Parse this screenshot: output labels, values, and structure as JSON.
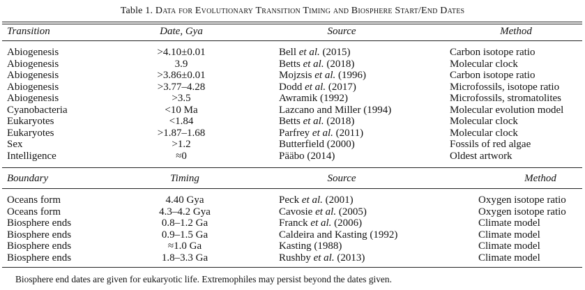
{
  "table": {
    "title_number": "Table 1.",
    "title_text": "Data for Evolutionary Transition Timing and Biosphere Start/End Dates",
    "transitions": {
      "headers": {
        "col1": "Transition",
        "col2": "Date, Gya",
        "col3": "Source",
        "col4": "Method"
      },
      "rows": [
        {
          "c1": "Abiogenesis",
          "c2": ">4.10±0.01",
          "c3a": "Bell",
          "c3b": "et al.",
          "c3c": "(2015)",
          "c4": "Carbon isotope ratio"
        },
        {
          "c1": "Abiogenesis",
          "c2": "3.9",
          "c3a": "Betts",
          "c3b": "et al.",
          "c3c": "(2018)",
          "c4": "Molecular clock"
        },
        {
          "c1": "Abiogenesis",
          "c2": ">3.86±0.01",
          "c3a": "Mojzsis",
          "c3b": "et al.",
          "c3c": "(1996)",
          "c4": "Carbon isotope ratio"
        },
        {
          "c1": "Abiogenesis",
          "c2": ">3.77–4.28",
          "c3a": "Dodd",
          "c3b": "et al.",
          "c3c": "(2017)",
          "c4": "Microfossils, isotope ratio"
        },
        {
          "c1": "Abiogenesis",
          "c2": ">3.5",
          "c3a": "Awramik (1992)",
          "c3b": "",
          "c3c": "",
          "c4": "Microfossils, stromatolites"
        },
        {
          "c1": "Cyanobacteria",
          "c2": "<10 Ma",
          "c3a": "Lazcano and Miller (1994)",
          "c3b": "",
          "c3c": "",
          "c4": "Molecular evolution model"
        },
        {
          "c1": "Eukaryotes",
          "c2": "<1.84",
          "c3a": "Betts",
          "c3b": "et al.",
          "c3c": "(2018)",
          "c4": "Molecular clock"
        },
        {
          "c1": "Eukaryotes",
          "c2": ">1.87–1.68",
          "c3a": "Parfrey",
          "c3b": "et al.",
          "c3c": "(2011)",
          "c4": "Molecular clock"
        },
        {
          "c1": "Sex",
          "c2": ">1.2",
          "c3a": "Butterfield (2000)",
          "c3b": "",
          "c3c": "",
          "c4": "Fossils of red algae"
        },
        {
          "c1": "Intelligence",
          "c2": "≈0",
          "c3a": "Pääbo (2014)",
          "c3b": "",
          "c3c": "",
          "c4": "Oldest artwork"
        }
      ]
    },
    "boundaries": {
      "headers": {
        "col1": "Boundary",
        "col2": "Timing",
        "col3": "Source",
        "col4": "Method"
      },
      "rows": [
        {
          "c1": "Oceans form",
          "c2": "4.40 Gya",
          "c3a": "Peck",
          "c3b": "et al.",
          "c3c": "(2001)",
          "c4": "Oxygen isotope ratio"
        },
        {
          "c1": "Oceans form",
          "c2": "4.3–4.2 Gya",
          "c3a": "Cavosie",
          "c3b": "et al.",
          "c3c": "(2005)",
          "c4": "Oxygen isotope ratio"
        },
        {
          "c1": "Biosphere ends",
          "c2": "0.8–1.2 Ga",
          "c3a": "Franck",
          "c3b": "et al.",
          "c3c": "(2006)",
          "c4": "Climate model"
        },
        {
          "c1": "Biosphere ends",
          "c2": "0.9–1.5 Ga",
          "c3a": "Caldeira and Kasting (1992)",
          "c3b": "",
          "c3c": "",
          "c4": "Climate model"
        },
        {
          "c1": "Biosphere ends",
          "c2": "≈1.0 Ga",
          "c3a": "Kasting (1988)",
          "c3b": "",
          "c3c": "",
          "c4": "Climate model"
        },
        {
          "c1": "Biosphere ends",
          "c2": "1.8–3.3 Ga",
          "c3a": "Rushby",
          "c3b": "et al.",
          "c3c": "(2013)",
          "c4": "Climate model"
        }
      ]
    },
    "footnote": "Biosphere end dates are given for eukaryotic life. Extremophiles may persist beyond the dates given."
  }
}
